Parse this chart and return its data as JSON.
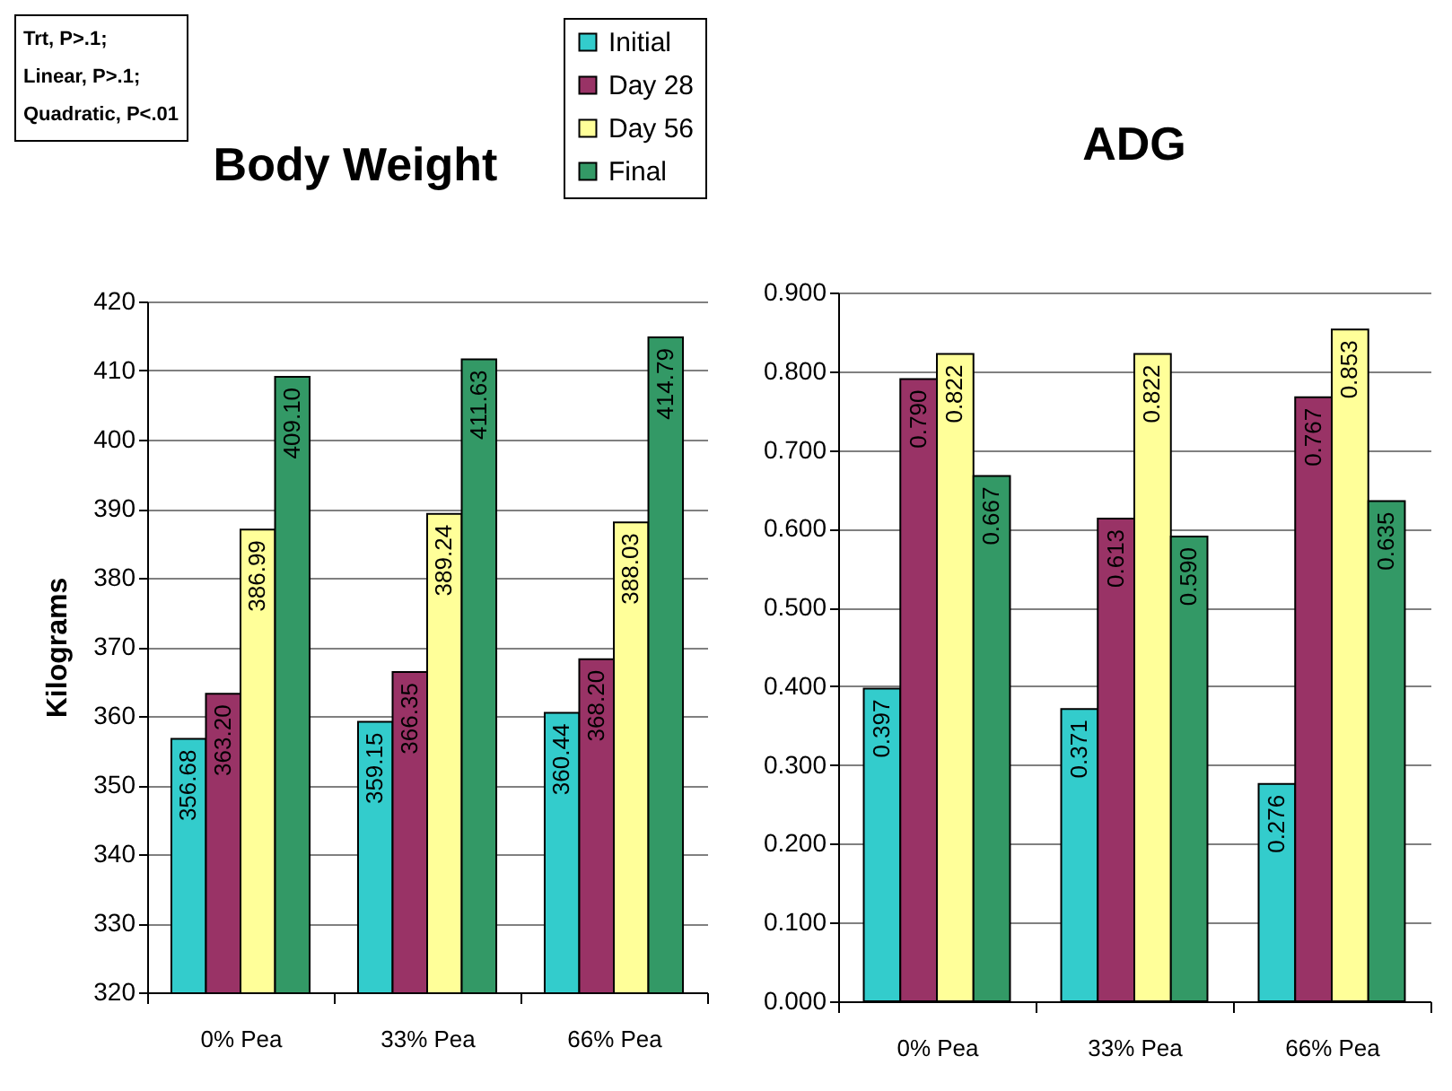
{
  "chart_data": [
    {
      "type": "bar",
      "title": "Body Weight",
      "ylabel": "Kilograms",
      "categories": [
        "0% Pea",
        "33% Pea",
        "66% Pea"
      ],
      "series": [
        {
          "name": "Initial",
          "color": "#33cccc",
          "values": [
            356.68,
            359.15,
            360.44
          ],
          "value_labels": [
            "356.68",
            "359.15",
            "360.44"
          ]
        },
        {
          "name": "Day 28",
          "color": "#993366",
          "values": [
            363.2,
            366.35,
            368.2
          ],
          "value_labels": [
            "363.20",
            "366.35",
            "368.20"
          ]
        },
        {
          "name": "Day 56",
          "color": "#ffff99",
          "values": [
            386.99,
            389.24,
            388.03
          ],
          "value_labels": [
            "386.99",
            "389.24",
            "388.03"
          ]
        },
        {
          "name": "Final",
          "color": "#339966",
          "values": [
            409.1,
            411.63,
            414.79
          ],
          "value_labels": [
            "409.10",
            "411.63",
            "414.79"
          ]
        }
      ],
      "ylim": [
        320,
        420
      ],
      "yticks": [
        320,
        330,
        340,
        350,
        360,
        370,
        380,
        390,
        400,
        410,
        420
      ],
      "grid": "y",
      "legend": "top right",
      "annotations": [
        "Trt, P>.1;",
        "Linear, P>.1;",
        "Quadratic, P<.01"
      ]
    },
    {
      "type": "bar",
      "title": "ADG",
      "categories": [
        "0% Pea",
        "33% Pea",
        "66% Pea"
      ],
      "series": [
        {
          "color": "#33cccc",
          "values": [
            0.397,
            0.371,
            0.276
          ],
          "value_labels": [
            "0.397",
            "0.371",
            "0.276"
          ]
        },
        {
          "color": "#993366",
          "values": [
            0.79,
            0.613,
            0.767
          ],
          "value_labels": [
            "0.790",
            "0.613",
            "0.767"
          ]
        },
        {
          "color": "#ffff99",
          "values": [
            0.822,
            0.822,
            0.853
          ],
          "value_labels": [
            "0.822",
            "0.822",
            "0.853"
          ]
        },
        {
          "color": "#339966",
          "values": [
            0.667,
            0.59,
            0.635
          ],
          "value_labels": [
            "0.667",
            "0.590",
            "0.635"
          ]
        }
      ],
      "ylim": [
        0,
        0.9
      ],
      "yticks": [
        {
          "value": 0,
          "label": "0.000"
        },
        {
          "value": 0.1,
          "label": "0.100"
        },
        {
          "value": 0.2,
          "label": "0.200"
        },
        {
          "value": 0.3,
          "label": "0.300"
        },
        {
          "value": 0.4,
          "label": "0.400"
        },
        {
          "value": 0.5,
          "label": "0.500"
        },
        {
          "value": 0.6,
          "label": "0.600"
        },
        {
          "value": 0.7,
          "label": "0.700"
        },
        {
          "value": 0.8,
          "label": "0.800"
        },
        {
          "value": 0.9,
          "label": "0.900"
        }
      ],
      "grid": "y"
    }
  ]
}
